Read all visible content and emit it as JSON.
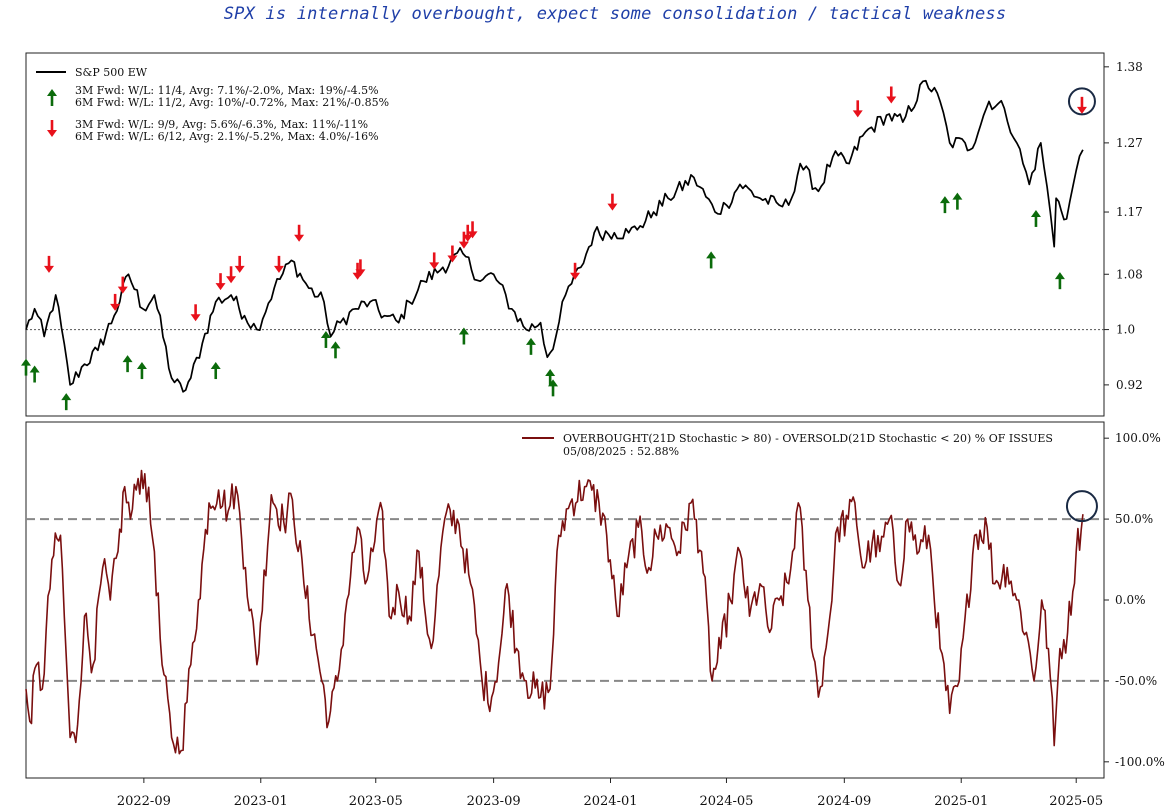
{
  "headline": "SPX is internally overbought, expect some consolidation / tactical weakness",
  "chart_data": [
    {
      "type": "line",
      "panel": "top",
      "series": [
        {
          "name": "S&P 500 EW",
          "color": "#000000"
        }
      ],
      "ylim": [
        0.875,
        1.4
      ],
      "yticks": [
        0.92,
        1.0,
        1.08,
        1.17,
        1.27,
        1.38
      ],
      "ytick_labels": [
        "0.92",
        "1.0",
        "1.08",
        "1.17",
        "1.27",
        "1.38"
      ],
      "reference_line": 1.0,
      "legend": {
        "placement": "top-left",
        "up_text": [
          "3M Fwd: W/L: 11/4, Avg: 7.1%/-2.0%, Max: 19%/-4.5%",
          "6M Fwd: W/L: 11/2, Avg: 10%/-0.72%, Max: 21%/-0.85%"
        ],
        "down_text": [
          "3M Fwd: W/L: 9/9, Avg: 5.6%/-6.3%, Max: 11%/-11%",
          "6M Fwd: W/L: 6/12, Avg: 2.1%/-5.2%, Max: 4.0%/-16%"
        ],
        "up_color": "#0b6b0b",
        "down_color": "#e8111b"
      },
      "anchors": [
        [
          "2022-05-01",
          1.0
        ],
        [
          "2022-05-10",
          1.03
        ],
        [
          "2022-05-20",
          0.99
        ],
        [
          "2022-06-01",
          1.05
        ],
        [
          "2022-06-16",
          0.92
        ],
        [
          "2022-07-01",
          0.95
        ],
        [
          "2022-07-15",
          0.97
        ],
        [
          "2022-08-01",
          1.02
        ],
        [
          "2022-08-16",
          1.08
        ],
        [
          "2022-08-31",
          1.03
        ],
        [
          "2022-09-12",
          1.05
        ],
        [
          "2022-09-30",
          0.93
        ],
        [
          "2022-10-12",
          0.91
        ],
        [
          "2022-10-20",
          0.93
        ],
        [
          "2022-11-01",
          0.98
        ],
        [
          "2022-11-15",
          1.04
        ],
        [
          "2022-12-01",
          1.05
        ],
        [
          "2022-12-15",
          1.02
        ],
        [
          "2022-12-28",
          1.0
        ],
        [
          "2023-01-15",
          1.06
        ],
        [
          "2023-02-02",
          1.1
        ],
        [
          "2023-02-20",
          1.06
        ],
        [
          "2023-03-08",
          1.04
        ],
        [
          "2023-03-15",
          0.99
        ],
        [
          "2023-03-25",
          1.01
        ],
        [
          "2023-04-10",
          1.03
        ],
        [
          "2023-04-25",
          1.04
        ],
        [
          "2023-05-10",
          1.02
        ],
        [
          "2023-05-25",
          1.01
        ],
        [
          "2023-06-05",
          1.04
        ],
        [
          "2023-06-20",
          1.07
        ],
        [
          "2023-07-10",
          1.09
        ],
        [
          "2023-07-31",
          1.11
        ],
        [
          "2023-08-18",
          1.07
        ],
        [
          "2023-09-01",
          1.08
        ],
        [
          "2023-09-20",
          1.03
        ],
        [
          "2023-10-05",
          1.0
        ],
        [
          "2023-10-20",
          1.01
        ],
        [
          "2023-10-27",
          0.96
        ],
        [
          "2023-11-05",
          0.99
        ],
        [
          "2023-11-15",
          1.05
        ],
        [
          "2023-12-01",
          1.09
        ],
        [
          "2023-12-15",
          1.14
        ],
        [
          "2024-01-05",
          1.14
        ],
        [
          "2024-01-20",
          1.14
        ],
        [
          "2024-02-01",
          1.15
        ],
        [
          "2024-02-15",
          1.17
        ],
        [
          "2024-03-01",
          1.19
        ],
        [
          "2024-03-28",
          1.22
        ],
        [
          "2024-04-19",
          1.17
        ],
        [
          "2024-05-01",
          1.18
        ],
        [
          "2024-05-15",
          1.21
        ],
        [
          "2024-06-05",
          1.19
        ],
        [
          "2024-06-25",
          1.18
        ],
        [
          "2024-07-05",
          1.18
        ],
        [
          "2024-07-17",
          1.24
        ],
        [
          "2024-08-05",
          1.2
        ],
        [
          "2024-08-20",
          1.25
        ],
        [
          "2024-09-06",
          1.24
        ],
        [
          "2024-09-20",
          1.28
        ],
        [
          "2024-10-15",
          1.31
        ],
        [
          "2024-11-01",
          1.3
        ],
        [
          "2024-11-25",
          1.36
        ],
        [
          "2024-12-10",
          1.33
        ],
        [
          "2024-12-20",
          1.27
        ],
        [
          "2025-01-05",
          1.27
        ],
        [
          "2025-01-10",
          1.26
        ],
        [
          "2025-01-30",
          1.33
        ],
        [
          "2025-02-15",
          1.32
        ],
        [
          "2025-02-28",
          1.27
        ],
        [
          "2025-03-13",
          1.21
        ],
        [
          "2025-03-25",
          1.27
        ],
        [
          "2025-04-04",
          1.17
        ],
        [
          "2025-04-08",
          1.12
        ],
        [
          "2025-04-10",
          1.19
        ],
        [
          "2025-04-21",
          1.16
        ],
        [
          "2025-05-01",
          1.23
        ],
        [
          "2025-05-08",
          1.26
        ]
      ],
      "up_arrows": [
        [
          "2022-05-01",
          0.945
        ],
        [
          "2022-05-10",
          0.935
        ],
        [
          "2022-06-12",
          0.895
        ],
        [
          "2022-08-15",
          0.95
        ],
        [
          "2022-08-30",
          0.94
        ],
        [
          "2022-11-15",
          0.94
        ],
        [
          "2023-03-10",
          0.985
        ],
        [
          "2023-03-20",
          0.97
        ],
        [
          "2023-08-01",
          0.99
        ],
        [
          "2023-10-10",
          0.975
        ],
        [
          "2023-10-30",
          0.93
        ],
        [
          "2023-11-02",
          0.915
        ],
        [
          "2024-04-15",
          1.1
        ],
        [
          "2024-12-15",
          1.18
        ],
        [
          "2024-12-28",
          1.185
        ],
        [
          "2025-03-20",
          1.16
        ],
        [
          "2025-04-14",
          1.07
        ]
      ],
      "down_arrows": [
        [
          "2022-05-25",
          1.095
        ],
        [
          "2022-08-02",
          1.04
        ],
        [
          "2022-08-10",
          1.065
        ],
        [
          "2022-10-25",
          1.025
        ],
        [
          "2022-11-20",
          1.07
        ],
        [
          "2022-12-01",
          1.08
        ],
        [
          "2022-12-10",
          1.095
        ],
        [
          "2023-01-20",
          1.095
        ],
        [
          "2023-02-10",
          1.14
        ],
        [
          "2023-04-12",
          1.085
        ],
        [
          "2023-04-15",
          1.09
        ],
        [
          "2023-07-01",
          1.1
        ],
        [
          "2023-07-20",
          1.11
        ],
        [
          "2023-08-01",
          1.13
        ],
        [
          "2023-08-05",
          1.14
        ],
        [
          "2023-08-10",
          1.145
        ],
        [
          "2023-11-25",
          1.085
        ],
        [
          "2024-01-03",
          1.185
        ],
        [
          "2024-09-15",
          1.32
        ],
        [
          "2024-10-20",
          1.34
        ],
        [
          "2025-05-07",
          1.325
        ]
      ],
      "highlight": [
        "2025-05-07",
        1.33
      ]
    },
    {
      "type": "line",
      "panel": "bottom",
      "series": [
        {
          "name": "OVERBOUGHT(21D Stochastic > 80) - OVERSOLD(21D Stochastic < 20) % OF ISSUES",
          "color": "#7a0f0f"
        }
      ],
      "latest_label": "05/08/2025 : 52.88%",
      "ylim": [
        -110,
        110
      ],
      "yticks": [
        -100,
        -50,
        0,
        50,
        100
      ],
      "ytick_labels": [
        "-100.0%",
        "-50.0%",
        "0.0%",
        "50.0%",
        "100.0%"
      ],
      "reference_lines": [
        50,
        -50
      ],
      "anchors": [
        [
          "2022-05-01",
          -55
        ],
        [
          "2022-05-05",
          -75
        ],
        [
          "2022-05-12",
          -40
        ],
        [
          "2022-05-18",
          -55
        ],
        [
          "2022-05-28",
          25
        ],
        [
          "2022-06-06",
          40
        ],
        [
          "2022-06-10",
          -10
        ],
        [
          "2022-06-16",
          -85
        ],
        [
          "2022-06-22",
          -88
        ],
        [
          "2022-07-01",
          -10
        ],
        [
          "2022-07-10",
          -40
        ],
        [
          "2022-07-20",
          20
        ],
        [
          "2022-07-28",
          0
        ],
        [
          "2022-08-05",
          30
        ],
        [
          "2022-08-12",
          70
        ],
        [
          "2022-08-18",
          50
        ],
        [
          "2022-08-26",
          75
        ],
        [
          "2022-09-02",
          78
        ],
        [
          "2022-09-12",
          30
        ],
        [
          "2022-09-20",
          -40
        ],
        [
          "2022-09-30",
          -85
        ],
        [
          "2022-10-10",
          -93
        ],
        [
          "2022-10-20",
          -40
        ],
        [
          "2022-10-28",
          0
        ],
        [
          "2022-11-08",
          60
        ],
        [
          "2022-11-18",
          68
        ],
        [
          "2022-11-28",
          55
        ],
        [
          "2022-12-06",
          70
        ],
        [
          "2022-12-16",
          20
        ],
        [
          "2022-12-28",
          -40
        ],
        [
          "2023-01-12",
          65
        ],
        [
          "2023-01-25",
          48
        ],
        [
          "2023-02-03",
          62
        ],
        [
          "2023-02-15",
          10
        ],
        [
          "2023-02-28",
          -30
        ],
        [
          "2023-03-13",
          -75
        ],
        [
          "2023-03-22",
          -50
        ],
        [
          "2023-04-01",
          0
        ],
        [
          "2023-04-12",
          45
        ],
        [
          "2023-04-20",
          10
        ],
        [
          "2023-04-28",
          30
        ],
        [
          "2023-05-08",
          55
        ],
        [
          "2023-05-15",
          -10
        ],
        [
          "2023-05-25",
          5
        ],
        [
          "2023-06-05",
          -10
        ],
        [
          "2023-06-15",
          30
        ],
        [
          "2023-06-20",
          0
        ],
        [
          "2023-06-28",
          -30
        ],
        [
          "2023-07-12",
          50
        ],
        [
          "2023-07-25",
          50
        ],
        [
          "2023-08-08",
          10
        ],
        [
          "2023-08-20",
          -50
        ],
        [
          "2023-08-30",
          -60
        ],
        [
          "2023-09-08",
          -30
        ],
        [
          "2023-09-15",
          10
        ],
        [
          "2023-09-25",
          -30
        ],
        [
          "2023-10-05",
          -50
        ],
        [
          "2023-10-20",
          -60
        ],
        [
          "2023-10-30",
          -55
        ],
        [
          "2023-11-08",
          40
        ],
        [
          "2023-11-20",
          60
        ],
        [
          "2023-12-05",
          70
        ],
        [
          "2023-12-20",
          60
        ],
        [
          "2023-12-28",
          40
        ],
        [
          "2024-01-08",
          -10
        ],
        [
          "2024-01-18",
          20
        ],
        [
          "2024-01-30",
          45
        ],
        [
          "2024-02-10",
          20
        ],
        [
          "2024-02-18",
          40
        ],
        [
          "2024-03-01",
          45
        ],
        [
          "2024-03-12",
          30
        ],
        [
          "2024-03-25",
          60
        ],
        [
          "2024-04-05",
          30
        ],
        [
          "2024-04-16",
          -50
        ],
        [
          "2024-04-25",
          -30
        ],
        [
          "2024-05-05",
          0
        ],
        [
          "2024-05-15",
          30
        ],
        [
          "2024-05-25",
          -10
        ],
        [
          "2024-06-05",
          10
        ],
        [
          "2024-06-15",
          -20
        ],
        [
          "2024-06-25",
          0
        ],
        [
          "2024-07-05",
          10
        ],
        [
          "2024-07-15",
          60
        ],
        [
          "2024-07-25",
          0
        ],
        [
          "2024-08-05",
          -60
        ],
        [
          "2024-08-15",
          -20
        ],
        [
          "2024-08-25",
          45
        ],
        [
          "2024-09-05",
          50
        ],
        [
          "2024-09-12",
          60
        ],
        [
          "2024-09-20",
          20
        ],
        [
          "2024-09-30",
          35
        ],
        [
          "2024-10-08",
          30
        ],
        [
          "2024-10-18",
          50
        ],
        [
          "2024-10-28",
          10
        ],
        [
          "2024-11-06",
          50
        ],
        [
          "2024-11-18",
          30
        ],
        [
          "2024-11-28",
          40
        ],
        [
          "2024-12-10",
          -30
        ],
        [
          "2024-12-20",
          -70
        ],
        [
          "2024-12-30",
          -50
        ],
        [
          "2025-01-15",
          40
        ],
        [
          "2025-01-28",
          45
        ],
        [
          "2025-02-05",
          10
        ],
        [
          "2025-02-18",
          20
        ],
        [
          "2025-02-28",
          0
        ],
        [
          "2025-03-10",
          -20
        ],
        [
          "2025-03-18",
          -50
        ],
        [
          "2025-03-26",
          0
        ],
        [
          "2025-04-02",
          -30
        ],
        [
          "2025-04-08",
          -90
        ],
        [
          "2025-04-14",
          -30
        ],
        [
          "2025-04-22",
          -20
        ],
        [
          "2025-05-01",
          30
        ],
        [
          "2025-05-08",
          53
        ]
      ],
      "highlight": [
        "2025-05-07",
        58
      ]
    }
  ],
  "xaxis": {
    "start": "2022-05-01",
    "end": "2025-05-30",
    "ticks": [
      "2022-09-01",
      "2023-01-01",
      "2023-05-01",
      "2023-09-01",
      "2024-01-01",
      "2024-05-01",
      "2024-09-01",
      "2025-01-01",
      "2025-05-01"
    ],
    "tick_labels": [
      "2022-09",
      "2023-01",
      "2023-05",
      "2023-09",
      "2024-01",
      "2024-05",
      "2024-09",
      "2025-01",
      "2025-05"
    ]
  },
  "colors": {
    "price": "#000000",
    "osc": "#7a0f0f",
    "up": "#0b6b0b",
    "down": "#e8111b",
    "highlight": "#1a2a44"
  }
}
